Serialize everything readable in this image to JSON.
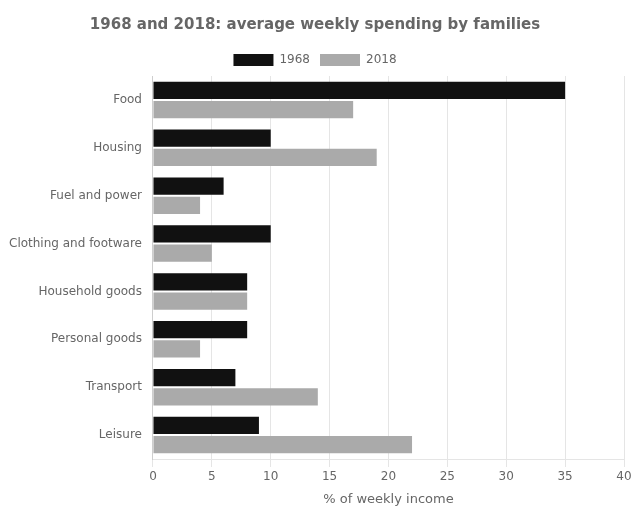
{
  "chart_data": {
    "type": "bar",
    "orientation": "horizontal",
    "title": "1968 and 2018: average weekly spending by families",
    "xlabel": "% of weekly income",
    "categories": [
      "Food",
      "Housing",
      "Fuel and power",
      "Clothing and footware",
      "Household goods",
      "Personal goods",
      "Transport",
      "Leisure"
    ],
    "series": [
      {
        "name": "1968",
        "color": "#111111",
        "values": [
          35,
          10,
          6,
          10,
          8,
          8,
          7,
          9
        ]
      },
      {
        "name": "2018",
        "color": "#aaaaaa",
        "values": [
          17,
          19,
          4,
          5,
          8,
          4,
          14,
          22
        ]
      }
    ],
    "xlim": [
      0,
      40
    ],
    "xticks": [
      0,
      5,
      10,
      15,
      20,
      25,
      30,
      35,
      40
    ],
    "grid": true,
    "legend": "top"
  }
}
